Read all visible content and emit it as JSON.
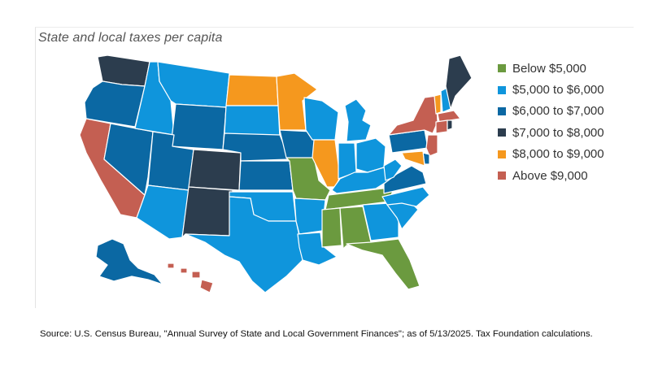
{
  "title": "State and local taxes per capita",
  "legend": [
    {
      "label": "Below $5,000",
      "color": "#6b9a3f"
    },
    {
      "label": "$5,000 to $6,000",
      "color": "#0f95dc"
    },
    {
      "label": "$6,000 to $7,000",
      "color": "#0b68a3"
    },
    {
      "label": "$7,000 to $8,000",
      "color": "#2c3d4e"
    },
    {
      "label": "$8,000 to $9,000",
      "color": "#f5981e"
    },
    {
      "label": "Above $9,000",
      "color": "#c45f52"
    }
  ],
  "states": [
    {
      "code": "WA",
      "name": "Washington",
      "category": 3
    },
    {
      "code": "OR",
      "name": "Oregon",
      "category": 2
    },
    {
      "code": "CA",
      "name": "California",
      "category": 5
    },
    {
      "code": "NV",
      "name": "Nevada",
      "category": 2
    },
    {
      "code": "ID",
      "name": "Idaho",
      "category": 1
    },
    {
      "code": "MT",
      "name": "Montana",
      "category": 1
    },
    {
      "code": "WY",
      "name": "Wyoming",
      "category": 2
    },
    {
      "code": "UT",
      "name": "Utah",
      "category": 2
    },
    {
      "code": "AZ",
      "name": "Arizona",
      "category": 1
    },
    {
      "code": "CO",
      "name": "Colorado",
      "category": 3
    },
    {
      "code": "NM",
      "name": "New Mexico",
      "category": 3
    },
    {
      "code": "ND",
      "name": "North Dakota",
      "category": 4
    },
    {
      "code": "SD",
      "name": "South Dakota",
      "category": 1
    },
    {
      "code": "NE",
      "name": "Nebraska",
      "category": 2
    },
    {
      "code": "KS",
      "name": "Kansas",
      "category": 2
    },
    {
      "code": "OK",
      "name": "Oklahoma",
      "category": 1
    },
    {
      "code": "TX",
      "name": "Texas",
      "category": 1
    },
    {
      "code": "MN",
      "name": "Minnesota",
      "category": 4
    },
    {
      "code": "IA",
      "name": "Iowa",
      "category": 2
    },
    {
      "code": "MO",
      "name": "Missouri",
      "category": 0
    },
    {
      "code": "AR",
      "name": "Arkansas",
      "category": 1
    },
    {
      "code": "LA",
      "name": "Louisiana",
      "category": 1
    },
    {
      "code": "WI",
      "name": "Wisconsin",
      "category": 1
    },
    {
      "code": "IL",
      "name": "Illinois",
      "category": 4
    },
    {
      "code": "MI",
      "name": "Michigan",
      "category": 1
    },
    {
      "code": "IN",
      "name": "Indiana",
      "category": 1
    },
    {
      "code": "OH",
      "name": "Ohio",
      "category": 1
    },
    {
      "code": "KY",
      "name": "Kentucky",
      "category": 1
    },
    {
      "code": "TN",
      "name": "Tennessee",
      "category": 0
    },
    {
      "code": "MS",
      "name": "Mississippi",
      "category": 0
    },
    {
      "code": "AL",
      "name": "Alabama",
      "category": 0
    },
    {
      "code": "GA",
      "name": "Georgia",
      "category": 1
    },
    {
      "code": "FL",
      "name": "Florida",
      "category": 0
    },
    {
      "code": "SC",
      "name": "South Carolina",
      "category": 1
    },
    {
      "code": "NC",
      "name": "North Carolina",
      "category": 1
    },
    {
      "code": "VA",
      "name": "Virginia",
      "category": 2
    },
    {
      "code": "WV",
      "name": "West Virginia",
      "category": 1
    },
    {
      "code": "PA",
      "name": "Pennsylvania",
      "category": 2
    },
    {
      "code": "NY",
      "name": "New York",
      "category": 5
    },
    {
      "code": "VT",
      "name": "Vermont",
      "category": 4
    },
    {
      "code": "NH",
      "name": "New Hampshire",
      "category": 1
    },
    {
      "code": "ME",
      "name": "Maine",
      "category": 3
    },
    {
      "code": "MA",
      "name": "Massachusetts",
      "category": 5
    },
    {
      "code": "CT",
      "name": "Connecticut",
      "category": 5
    },
    {
      "code": "RI",
      "name": "Rhode Island",
      "category": 3
    },
    {
      "code": "NJ",
      "name": "New Jersey",
      "category": 5
    },
    {
      "code": "DE",
      "name": "Delaware",
      "category": 2
    },
    {
      "code": "MD",
      "name": "Maryland",
      "category": 4
    },
    {
      "code": "AK",
      "name": "Alaska",
      "category": 2
    },
    {
      "code": "HI",
      "name": "Hawaii",
      "category": 5
    }
  ],
  "source": "Source: U.S. Census Bureau, \"Annual Survey of State and Local Government Finances\"; as of 5/13/2025. Tax Foundation calculations."
}
